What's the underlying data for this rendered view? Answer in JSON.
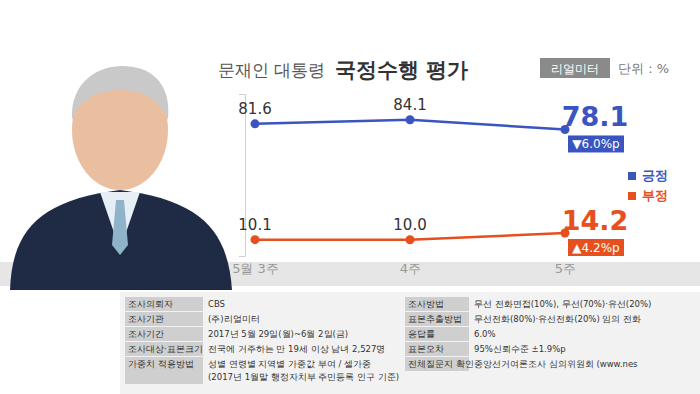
{
  "chart_data": {
    "type": "line",
    "title": "국정수행 평가",
    "subtitle": "문재인 대통령",
    "source": "리얼미터",
    "unit": "단위 : %",
    "categories": [
      "5월 3주",
      "4주",
      "5주"
    ],
    "series": [
      {
        "name": "긍정",
        "color": "#3a55c0",
        "values": [
          81.6,
          84.1,
          78.1
        ],
        "value_labels": [
          "81.6",
          "84.1",
          "78.1"
        ],
        "change_label": "▼6.0%p",
        "marker": "circle"
      },
      {
        "name": "부정",
        "color": "#e5501e",
        "values": [
          10.1,
          10.0,
          14.2
        ],
        "value_labels": [
          "10.1",
          "10.0",
          "14.2"
        ],
        "change_label": "▲4.2%p",
        "marker": "circle"
      }
    ],
    "ylim": [
      0,
      100
    ],
    "yticks": [],
    "grid": false,
    "legend": "right",
    "data_labels": true,
    "tick_labels": "x"
  },
  "survey_info": {
    "left": [
      {
        "label": "조사의뢰자",
        "lines": [
          "CBS"
        ]
      },
      {
        "label": "조사기관",
        "lines": [
          "(주)리얼미터"
        ]
      },
      {
        "label": "조사기간",
        "lines": [
          "2017년 5월 29일(월)~6월 2일(금)"
        ]
      },
      {
        "label": "조사대상·표본크기",
        "lines": [
          "전국에 거주하는 만 19세 이상 남녀 2,527명"
        ]
      },
      {
        "label": "가중치 적용방법",
        "lines": [
          "성별 연령별 지역별 가중값 부여 / 셀가중",
          "(2017년 1월말 행정자치부 주민등록 인구 기준)"
        ]
      }
    ],
    "right": [
      {
        "label": "조사방법",
        "lines": [
          "무선 전화면접(10%), 무선(70%)·유선(20%)"
        ]
      },
      {
        "label": "표본추출방법",
        "lines": [
          "무선전화(80%)·유선전화(20%) 임의 전화"
        ]
      },
      {
        "label": "응답률",
        "lines": [
          "6.0%"
        ]
      },
      {
        "label": "표본오차",
        "lines": [
          "95%신뢰수준 ±1.9%p"
        ]
      },
      {
        "label": "전체질문지 확인",
        "lines": [
          "중앙선거여론조사 심의위원회 (www.nes"
        ]
      }
    ]
  }
}
